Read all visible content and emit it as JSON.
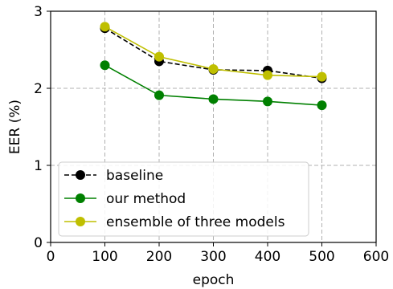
{
  "chart_data": {
    "type": "line",
    "xlabel": "epoch",
    "ylabel": "EER (%)",
    "xlim": [
      0,
      600
    ],
    "ylim": [
      0,
      3
    ],
    "xticks": [
      0,
      100,
      200,
      300,
      400,
      500,
      600
    ],
    "yticks": [
      0,
      1,
      2,
      3
    ],
    "grid": true,
    "legend_position": "bottom-left",
    "x": [
      100,
      200,
      300,
      400,
      500
    ],
    "series": [
      {
        "name": "baseline",
        "values": [
          2.78,
          2.35,
          2.24,
          2.23,
          2.13
        ],
        "color": "#000000",
        "line_style": "dashed",
        "marker": "circle"
      },
      {
        "name": "our method",
        "values": [
          2.3,
          1.91,
          1.86,
          1.83,
          1.78
        ],
        "color": "#008000",
        "line_style": "solid",
        "marker": "circle"
      },
      {
        "name": "ensemble of three models",
        "values": [
          2.8,
          2.41,
          2.25,
          2.17,
          2.15
        ],
        "color": "#bfbf00",
        "line_style": "solid",
        "marker": "circle"
      }
    ]
  }
}
